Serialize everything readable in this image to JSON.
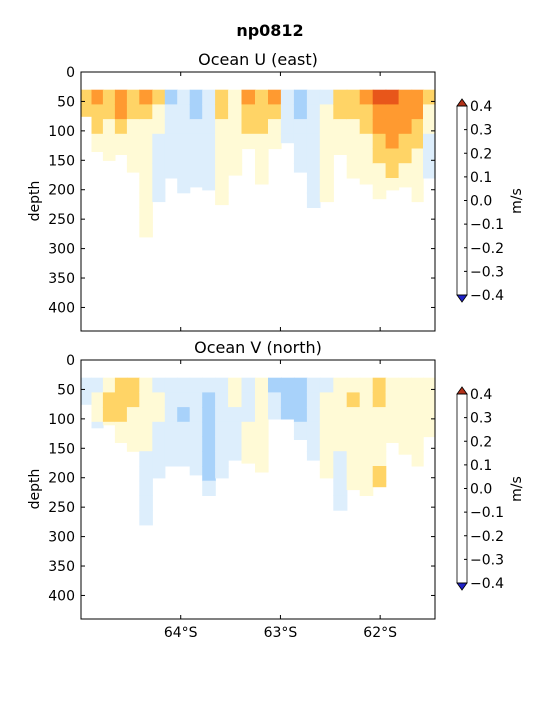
{
  "figure": {
    "suptitle": "np0812"
  },
  "chart_data": [
    {
      "type": "heatmap",
      "title": "Ocean U (east)",
      "xlabel": "",
      "ylabel": "depth",
      "y_ticks": [
        0,
        50,
        100,
        150,
        200,
        250,
        300,
        350,
        400
      ],
      "ylim": [
        440,
        0
      ],
      "x_ticks": [
        -64,
        -63,
        -62
      ],
      "x_tick_labels": [
        "64°S",
        "63°S",
        "62°S"
      ],
      "xlim": [
        -65.0,
        -61.45
      ],
      "show_x_tick_labels": false,
      "colorbar": {
        "label": "m/s",
        "levels": [
          -0.4,
          -0.3,
          -0.2,
          -0.1,
          0.0,
          0.1,
          0.2,
          0.3,
          0.4
        ],
        "tick_labels": [
          "−0.4",
          "−0.3",
          "−0.2",
          "−0.1",
          "0.0",
          "0.1",
          "0.2",
          "0.3",
          "0.4"
        ],
        "colors": [
          "#2a3cf0",
          "#3a78ec",
          "#a8d2fa",
          "#ddeefc",
          "#fffad6",
          "#ffd466",
          "#ff9a30",
          "#e8561a"
        ],
        "extend": "both"
      },
      "profiles": [
        {
          "lat": -64.95,
          "max_depth": 75,
          "vals": [
            0.15,
            0.15,
            0.05
          ]
        },
        {
          "lat": -64.84,
          "max_depth": 135,
          "vals": [
            0.25,
            0.15,
            0.15,
            0.05,
            0.05
          ]
        },
        {
          "lat": -64.72,
          "max_depth": 150,
          "vals": [
            0.15,
            0.15,
            0.05,
            0.05,
            0.05
          ]
        },
        {
          "lat": -64.6,
          "max_depth": 140,
          "vals": [
            0.25,
            0.25,
            0.15,
            0.05,
            0.05
          ]
        },
        {
          "lat": -64.48,
          "max_depth": 170,
          "vals": [
            0.15,
            0.15,
            0.05,
            0.05,
            0.05,
            0.05
          ]
        },
        {
          "lat": -64.35,
          "max_depth": 285,
          "vals": [
            0.25,
            0.15,
            0.05,
            0.05,
            0.05,
            0.05,
            0.05,
            0.05,
            0.05,
            0.05
          ]
        },
        {
          "lat": -64.22,
          "max_depth": 220,
          "vals": [
            0.15,
            0.05,
            0.05,
            -0.05,
            -0.05,
            -0.05,
            -0.05,
            -0.05
          ]
        },
        {
          "lat": -64.1,
          "max_depth": 180,
          "vals": [
            -0.15,
            -0.05,
            -0.05,
            -0.05,
            -0.05,
            -0.05,
            -0.05
          ]
        },
        {
          "lat": -63.97,
          "max_depth": 210,
          "vals": [
            -0.05,
            -0.05,
            -0.05,
            -0.05,
            -0.05,
            -0.05,
            -0.05
          ]
        },
        {
          "lat": -63.85,
          "max_depth": 195,
          "vals": [
            -0.15,
            -0.15,
            -0.05,
            -0.05,
            -0.05,
            -0.05,
            -0.05
          ]
        },
        {
          "lat": -63.72,
          "max_depth": 200,
          "vals": [
            -0.05,
            -0.05,
            -0.05,
            -0.05,
            -0.05,
            -0.05,
            -0.05
          ]
        },
        {
          "lat": -63.59,
          "max_depth": 225,
          "vals": [
            0.15,
            0.15,
            0.05,
            0.05,
            0.05,
            0.05,
            0.05,
            0.05
          ]
        },
        {
          "lat": -63.46,
          "max_depth": 175,
          "vals": [
            0.05,
            0.05,
            0.05,
            0.05,
            0.05,
            0.05
          ]
        },
        {
          "lat": -63.32,
          "max_depth": 130,
          "vals": [
            0.25,
            0.15,
            0.15,
            0.05,
            0.05
          ]
        },
        {
          "lat": -63.19,
          "max_depth": 190,
          "vals": [
            0.15,
            0.15,
            0.15,
            0.05,
            0.05,
            0.05,
            0.05
          ]
        },
        {
          "lat": -63.06,
          "max_depth": 130,
          "vals": [
            0.25,
            0.15,
            0.05,
            0.05,
            0.05
          ]
        },
        {
          "lat": -62.93,
          "max_depth": 120,
          "vals": [
            -0.05,
            -0.05,
            -0.05,
            -0.05
          ]
        },
        {
          "lat": -62.8,
          "max_depth": 170,
          "vals": [
            -0.15,
            -0.15,
            -0.05,
            -0.05,
            -0.05,
            -0.05
          ]
        },
        {
          "lat": -62.67,
          "max_depth": 240,
          "vals": [
            -0.05,
            -0.05,
            -0.05,
            -0.05,
            -0.05,
            -0.05,
            -0.05,
            -0.05
          ]
        },
        {
          "lat": -62.54,
          "max_depth": 220,
          "vals": [
            -0.05,
            0.05,
            0.05,
            0.05,
            0.05,
            0.05,
            0.05,
            0.05
          ]
        },
        {
          "lat": -62.4,
          "max_depth": 140,
          "vals": [
            0.15,
            0.15,
            0.05,
            0.05,
            0.05
          ]
        },
        {
          "lat": -62.27,
          "max_depth": 180,
          "vals": [
            0.15,
            0.15,
            0.05,
            0.05,
            0.05,
            0.05
          ]
        },
        {
          "lat": -62.14,
          "max_depth": 190,
          "vals": [
            0.25,
            0.15,
            0.15,
            0.05,
            0.05,
            0.05,
            0.05
          ]
        },
        {
          "lat": -62.01,
          "max_depth": 215,
          "vals": [
            0.35,
            0.25,
            0.25,
            0.15,
            0.15,
            0.05,
            0.05,
            0.05
          ]
        },
        {
          "lat": -61.88,
          "max_depth": 200,
          "vals": [
            0.35,
            0.25,
            0.25,
            0.25,
            0.15,
            0.15,
            0.05
          ]
        },
        {
          "lat": -61.75,
          "max_depth": 195,
          "vals": [
            0.25,
            0.25,
            0.25,
            0.15,
            0.15,
            0.05,
            0.05
          ]
        },
        {
          "lat": -61.62,
          "max_depth": 220,
          "vals": [
            0.25,
            0.25,
            0.15,
            0.15,
            0.05,
            0.05,
            0.05,
            0.05
          ]
        },
        {
          "lat": -61.52,
          "max_depth": 180,
          "vals": [
            0.15,
            0.05,
            0.05,
            -0.05,
            -0.05,
            -0.05
          ]
        }
      ]
    },
    {
      "type": "heatmap",
      "title": "Ocean V (north)",
      "xlabel": "",
      "ylabel": "depth",
      "y_ticks": [
        0,
        50,
        100,
        150,
        200,
        250,
        300,
        350,
        400
      ],
      "ylim": [
        440,
        0
      ],
      "x_ticks": [
        -64,
        -63,
        -62
      ],
      "x_tick_labels": [
        "64°S",
        "63°S",
        "62°S"
      ],
      "xlim": [
        -65.0,
        -61.45
      ],
      "show_x_tick_labels": true,
      "colorbar": {
        "label": "m/s",
        "levels": [
          -0.4,
          -0.3,
          -0.2,
          -0.1,
          0.0,
          0.1,
          0.2,
          0.3,
          0.4
        ],
        "tick_labels": [
          "−0.4",
          "−0.3",
          "−0.2",
          "−0.1",
          "0.0",
          "0.1",
          "0.2",
          "0.3",
          "0.4"
        ],
        "colors": [
          "#2a3cf0",
          "#3a78ec",
          "#a8d2fa",
          "#ddeefc",
          "#fffad6",
          "#ffd466",
          "#ff9a30",
          "#e8561a"
        ],
        "extend": "both"
      },
      "profiles": [
        {
          "lat": -64.95,
          "max_depth": 75,
          "vals": [
            -0.05,
            -0.05,
            -0.05
          ]
        },
        {
          "lat": -64.84,
          "max_depth": 115,
          "vals": [
            -0.05,
            0.05,
            0.05,
            -0.05
          ]
        },
        {
          "lat": -64.72,
          "max_depth": 110,
          "vals": [
            0.05,
            0.15,
            0.15,
            0.05
          ]
        },
        {
          "lat": -64.6,
          "max_depth": 140,
          "vals": [
            0.15,
            0.15,
            0.15,
            0.05,
            0.05
          ]
        },
        {
          "lat": -64.48,
          "max_depth": 160,
          "vals": [
            0.15,
            0.15,
            0.05,
            0.05,
            0.05
          ]
        },
        {
          "lat": -64.35,
          "max_depth": 300,
          "vals": [
            0.05,
            0.05,
            0.05,
            0.05,
            0.05,
            -0.05,
            -0.05,
            -0.05,
            -0.05,
            -0.05
          ]
        },
        {
          "lat": -64.22,
          "max_depth": 200,
          "vals": [
            -0.05,
            0.05,
            0.05,
            -0.05,
            -0.05,
            -0.05,
            -0.05
          ]
        },
        {
          "lat": -64.1,
          "max_depth": 180,
          "vals": [
            -0.05,
            -0.05,
            -0.05,
            -0.05,
            -0.05,
            -0.05
          ]
        },
        {
          "lat": -63.97,
          "max_depth": 185,
          "vals": [
            -0.05,
            -0.05,
            -0.15,
            -0.05,
            -0.05,
            -0.05
          ]
        },
        {
          "lat": -63.85,
          "max_depth": 195,
          "vals": [
            -0.05,
            -0.05,
            -0.05,
            -0.05,
            -0.05,
            -0.05,
            -0.05
          ]
        },
        {
          "lat": -63.72,
          "max_depth": 240,
          "vals": [
            -0.05,
            -0.15,
            -0.15,
            -0.15,
            -0.15,
            -0.15,
            -0.15,
            -0.05
          ]
        },
        {
          "lat": -63.59,
          "max_depth": 200,
          "vals": [
            -0.05,
            -0.05,
            -0.05,
            -0.05,
            -0.05,
            -0.05,
            -0.05
          ]
        },
        {
          "lat": -63.46,
          "max_depth": 170,
          "vals": [
            0.05,
            0.05,
            -0.05,
            -0.05,
            -0.05,
            -0.05
          ]
        },
        {
          "lat": -63.32,
          "max_depth": 175,
          "vals": [
            -0.05,
            -0.05,
            -0.05,
            0.05,
            0.05,
            0.05
          ]
        },
        {
          "lat": -63.19,
          "max_depth": 190,
          "vals": [
            0.05,
            0.05,
            0.05,
            0.05,
            0.05,
            0.05,
            0.05
          ]
        },
        {
          "lat": -63.06,
          "max_depth": 100,
          "vals": [
            -0.15,
            -0.05,
            -0.05,
            -0.05
          ]
        },
        {
          "lat": -62.93,
          "max_depth": 100,
          "vals": [
            -0.15,
            -0.15,
            -0.15,
            -0.05
          ]
        },
        {
          "lat": -62.8,
          "max_depth": 135,
          "vals": [
            -0.15,
            -0.15,
            -0.15,
            -0.05,
            -0.05
          ]
        },
        {
          "lat": -62.67,
          "max_depth": 170,
          "vals": [
            -0.05,
            -0.05,
            -0.05,
            -0.05,
            -0.05,
            -0.05
          ]
        },
        {
          "lat": -62.54,
          "max_depth": 200,
          "vals": [
            -0.05,
            0.05,
            0.05,
            0.05,
            0.05,
            0.05,
            0.05
          ]
        },
        {
          "lat": -62.4,
          "max_depth": 280,
          "vals": [
            0.05,
            0.05,
            0.05,
            0.05,
            0.05,
            -0.05,
            -0.05,
            -0.05,
            -0.05
          ]
        },
        {
          "lat": -62.27,
          "max_depth": 220,
          "vals": [
            0.05,
            0.15,
            0.05,
            0.05,
            0.05,
            0.05,
            0.05,
            0.05
          ]
        },
        {
          "lat": -62.14,
          "max_depth": 240,
          "vals": [
            0.05,
            0.05,
            0.05,
            0.05,
            0.05,
            0.05,
            0.05,
            0.05
          ]
        },
        {
          "lat": -62.01,
          "max_depth": 215,
          "vals": [
            0.15,
            0.15,
            0.05,
            0.05,
            0.05,
            0.05,
            0.15,
            0.15
          ]
        },
        {
          "lat": -61.88,
          "max_depth": 140,
          "vals": [
            0.05,
            0.05,
            0.05,
            0.05,
            0.05
          ]
        },
        {
          "lat": -61.75,
          "max_depth": 160,
          "vals": [
            0.05,
            0.05,
            0.05,
            0.05,
            0.05,
            0.05
          ]
        },
        {
          "lat": -61.62,
          "max_depth": 185,
          "vals": [
            0.05,
            0.05,
            0.05,
            0.05,
            0.05,
            0.05
          ]
        },
        {
          "lat": -61.52,
          "max_depth": 130,
          "vals": [
            0.05,
            0.05,
            0.05,
            0.05
          ]
        }
      ]
    }
  ]
}
